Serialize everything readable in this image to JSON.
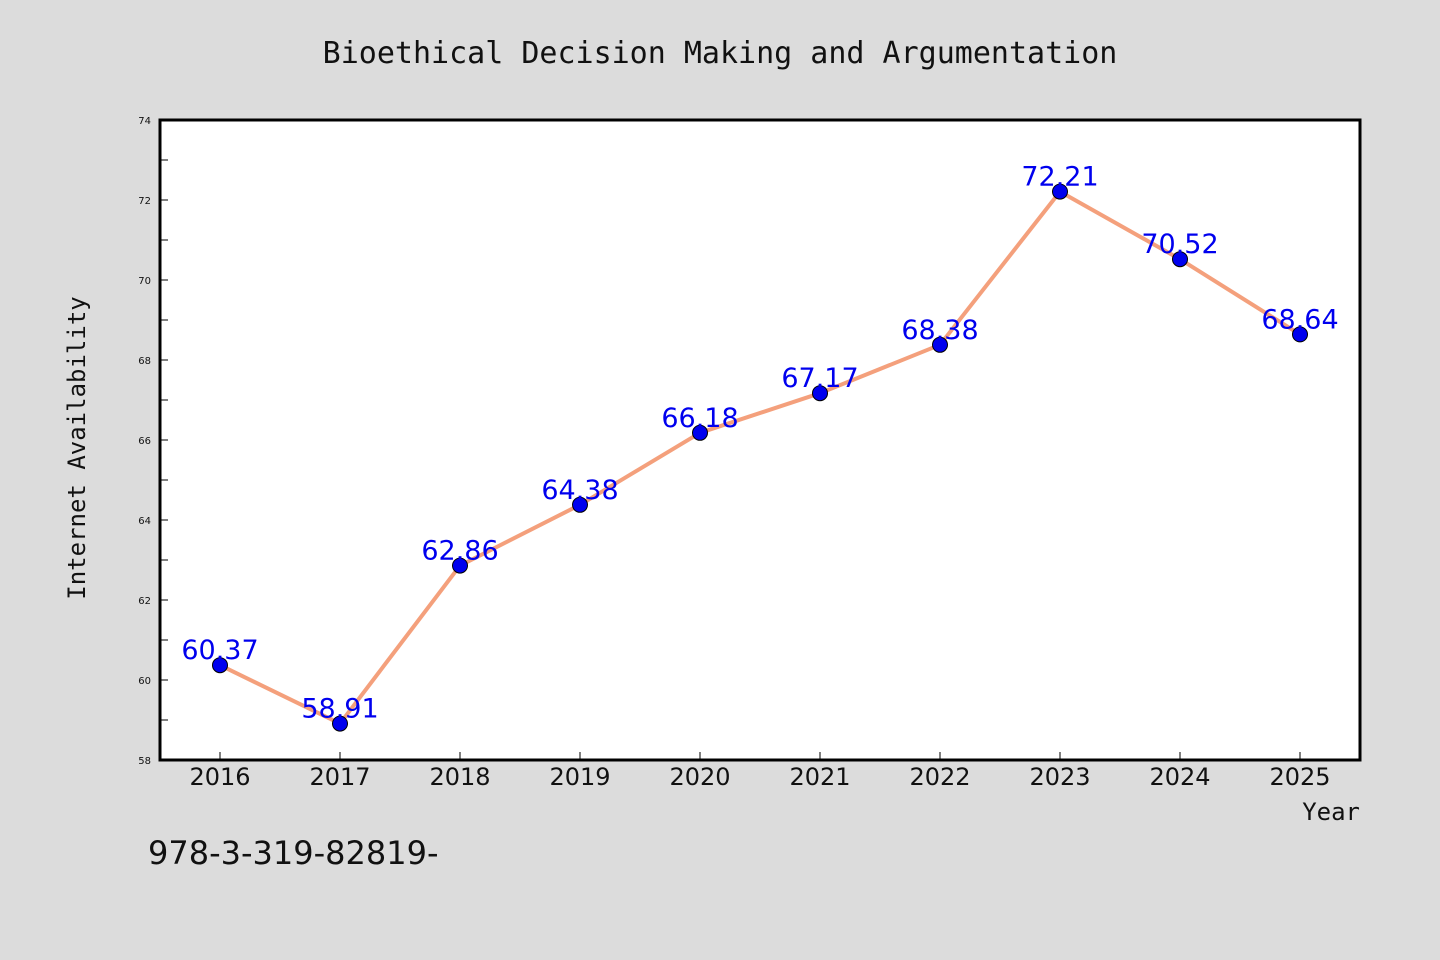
{
  "chart_data": {
    "type": "line",
    "title": "Bioethical Decision Making and Argumentation",
    "xlabel": "Year",
    "ylabel": "Internet Availability",
    "categories": [
      "2016",
      "2017",
      "2018",
      "2019",
      "2020",
      "2021",
      "2022",
      "2023",
      "2024",
      "2025"
    ],
    "series": [
      {
        "values": [
          60.37,
          58.91,
          62.86,
          64.38,
          66.18,
          67.17,
          68.38,
          72.21,
          70.52,
          68.64
        ],
        "labels": [
          "60.37",
          "58.91",
          "62.86",
          "64.38",
          "66.18",
          "67.17",
          "68.38",
          "72.21",
          "70.52",
          "68.64"
        ],
        "line_color": "#f4a07c",
        "marker_color": "#0000ee",
        "label_color": "#0000ee"
      }
    ],
    "ylim": [
      58,
      74
    ],
    "yticks": [
      "58",
      "60",
      "62",
      "64",
      "66",
      "68",
      "70",
      "72",
      "74"
    ],
    "grid": false,
    "legend": "none"
  },
  "footer_text": "978-3-319-82819-"
}
